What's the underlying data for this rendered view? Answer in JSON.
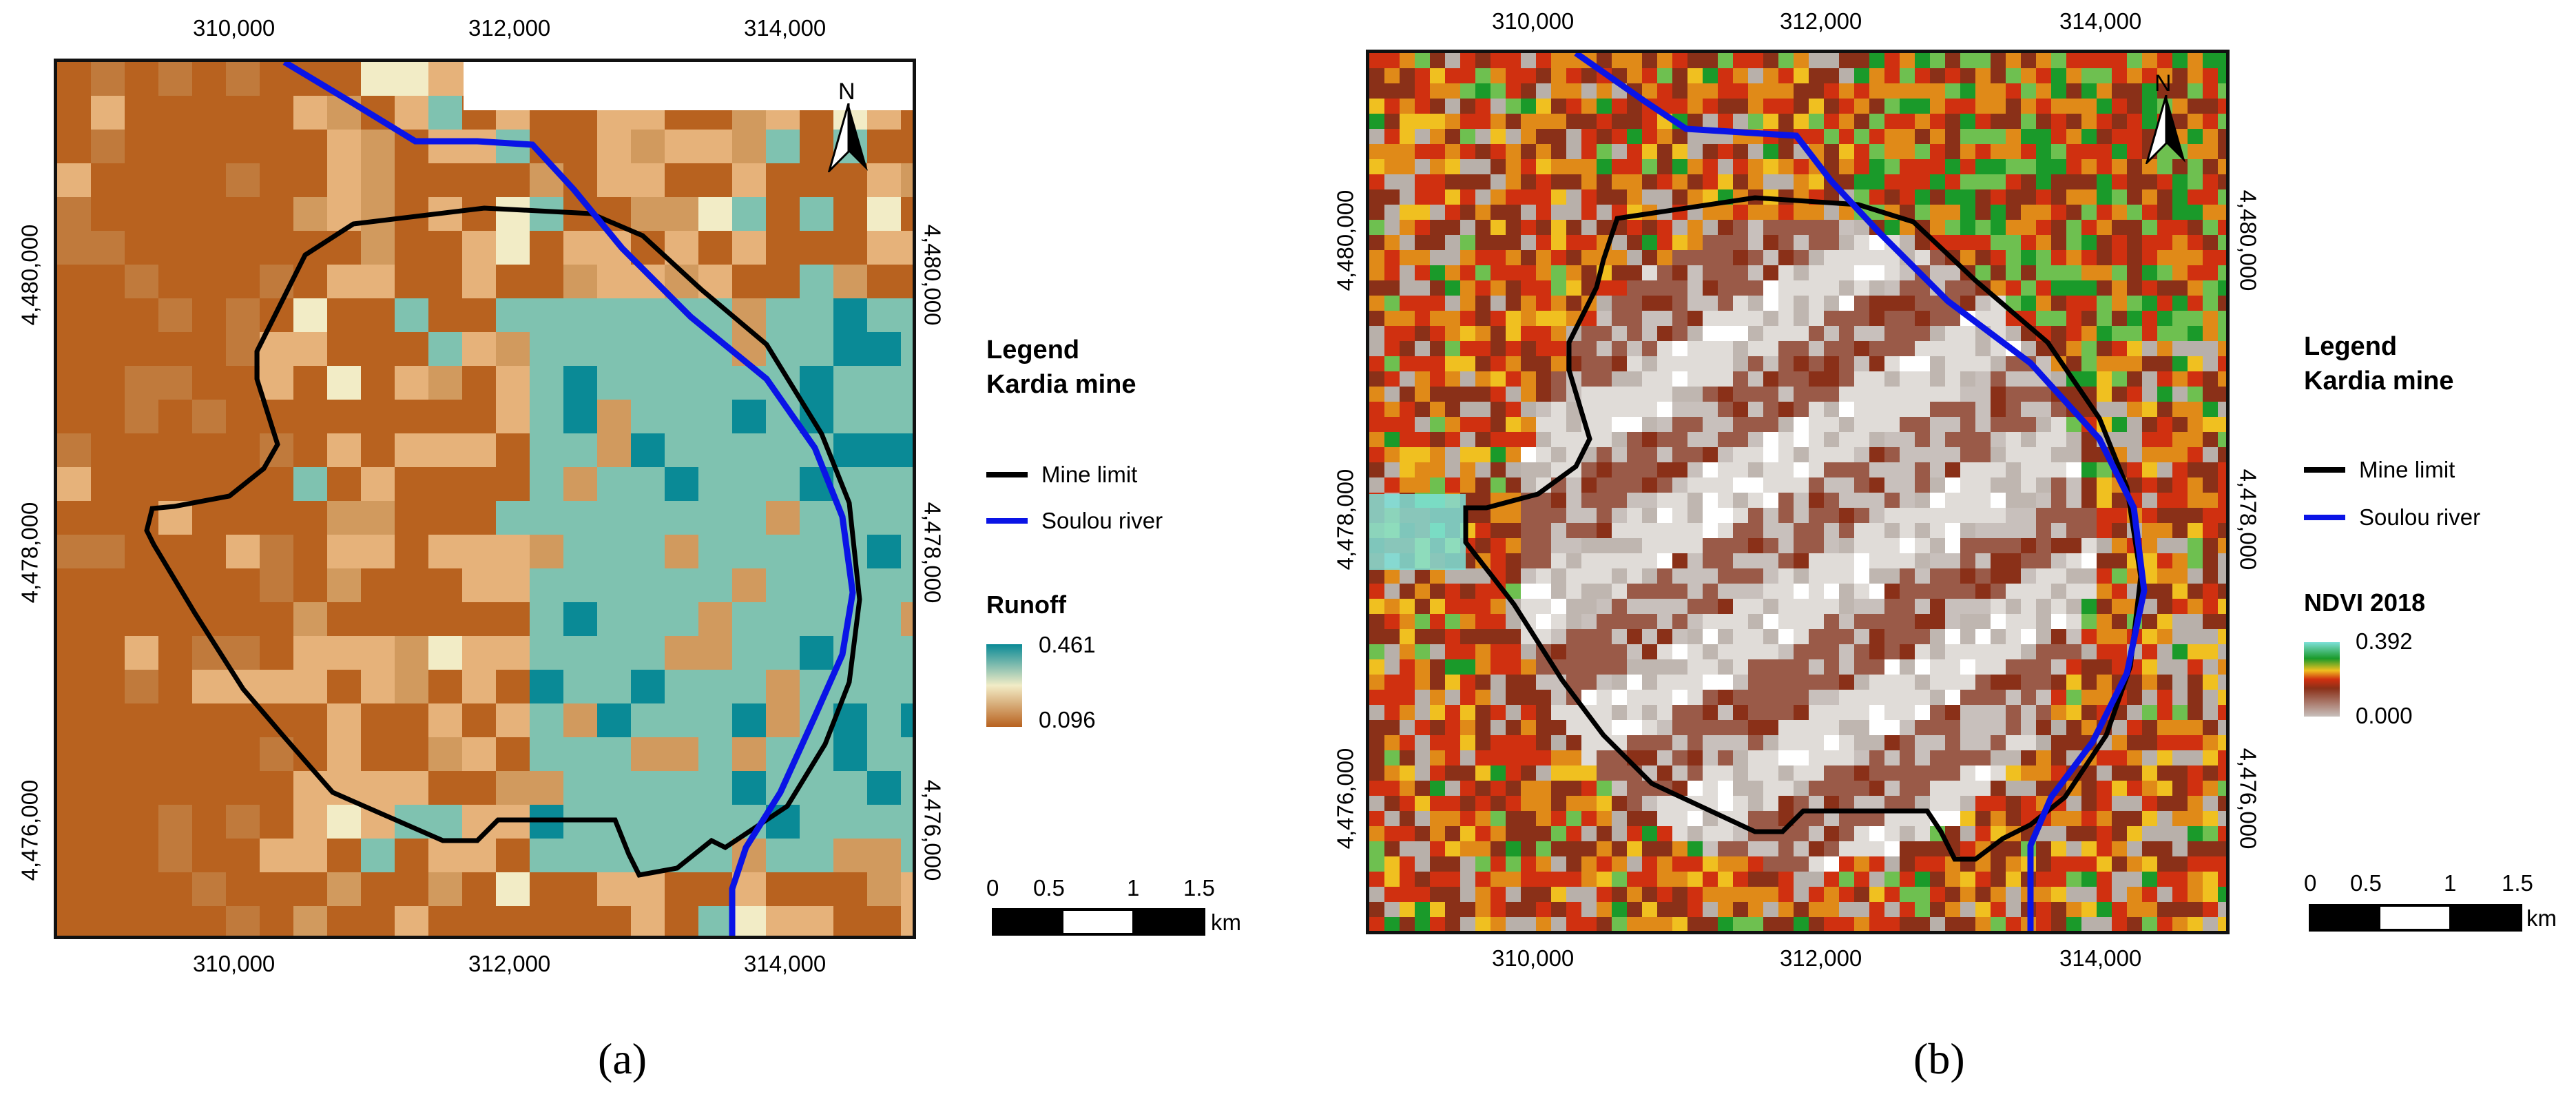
{
  "panel_a": {
    "letter": "(a)",
    "x_ticks_top": [
      "310,000",
      "312,000",
      "314,000"
    ],
    "x_ticks_bottom": [
      "310,000",
      "312,000",
      "314,000"
    ],
    "y_ticks_left": [
      "4,480,000",
      "4,478,000",
      "4,476,000"
    ],
    "y_ticks_right": [
      "4,480,000",
      "4,478,000",
      "4,476,000"
    ],
    "north_label": "N",
    "legend": {
      "title_line1": "Legend",
      "title_line2": "Kardia mine",
      "items": [
        {
          "label": "Mine limit",
          "color": "#000000"
        },
        {
          "label": "Soulou river",
          "color": "#0a14e6"
        }
      ],
      "ramp_title": "Runoff",
      "ramp_max": "0.461",
      "ramp_min": "0.096",
      "ramp_colors": [
        "#0a8a96",
        "#f2ecc6",
        "#b8621f"
      ]
    },
    "scale": {
      "labels": [
        "0",
        "0.5",
        "1",
        "1.5"
      ],
      "unit": "km"
    }
  },
  "panel_b": {
    "letter": "(b)",
    "x_ticks_top": [
      "310,000",
      "312,000",
      "314,000"
    ],
    "x_ticks_bottom": [
      "310,000",
      "312,000",
      "314,000"
    ],
    "y_ticks_left": [
      "4,480,000",
      "4,478,000",
      "4,476,000"
    ],
    "y_ticks_right": [
      "4,480,000",
      "4,478,000",
      "4,476,000"
    ],
    "north_label": "N",
    "legend": {
      "title_line1": "Legend",
      "title_line2": "Kardia mine",
      "items": [
        {
          "label": "Mine limit",
          "color": "#000000"
        },
        {
          "label": "Soulou river",
          "color": "#0a14e6"
        }
      ],
      "ramp_title": "NDVI 2018",
      "ramp_max": "0.392",
      "ramp_min": "0.000",
      "ramp_colors": [
        "#7de0d8",
        "#1a9a2a",
        "#f0c020",
        "#d03010",
        "#8a3018",
        "#c8c0bc"
      ]
    },
    "scale": {
      "labels": [
        "0",
        "0.5",
        "1",
        "1.5"
      ],
      "unit": "km"
    }
  }
}
